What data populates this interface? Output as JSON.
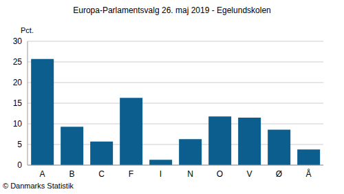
{
  "chart_data": {
    "type": "bar",
    "title": "Europa-Parlamentsvalg 26. maj 2019 - Egelundskolen",
    "y_label": "Pct.",
    "source": "© Danmarks Statistik",
    "categories": [
      "A",
      "B",
      "C",
      "F",
      "I",
      "N",
      "O",
      "V",
      "Ø",
      "Å"
    ],
    "values": [
      25.7,
      9.3,
      5.7,
      16.3,
      1.3,
      6.3,
      11.8,
      11.5,
      8.6,
      3.8
    ],
    "color": "#0b5e8e",
    "ylim": [
      0,
      30
    ],
    "yticks": [
      0,
      5,
      10,
      15,
      20,
      25,
      30
    ],
    "grid": true
  }
}
